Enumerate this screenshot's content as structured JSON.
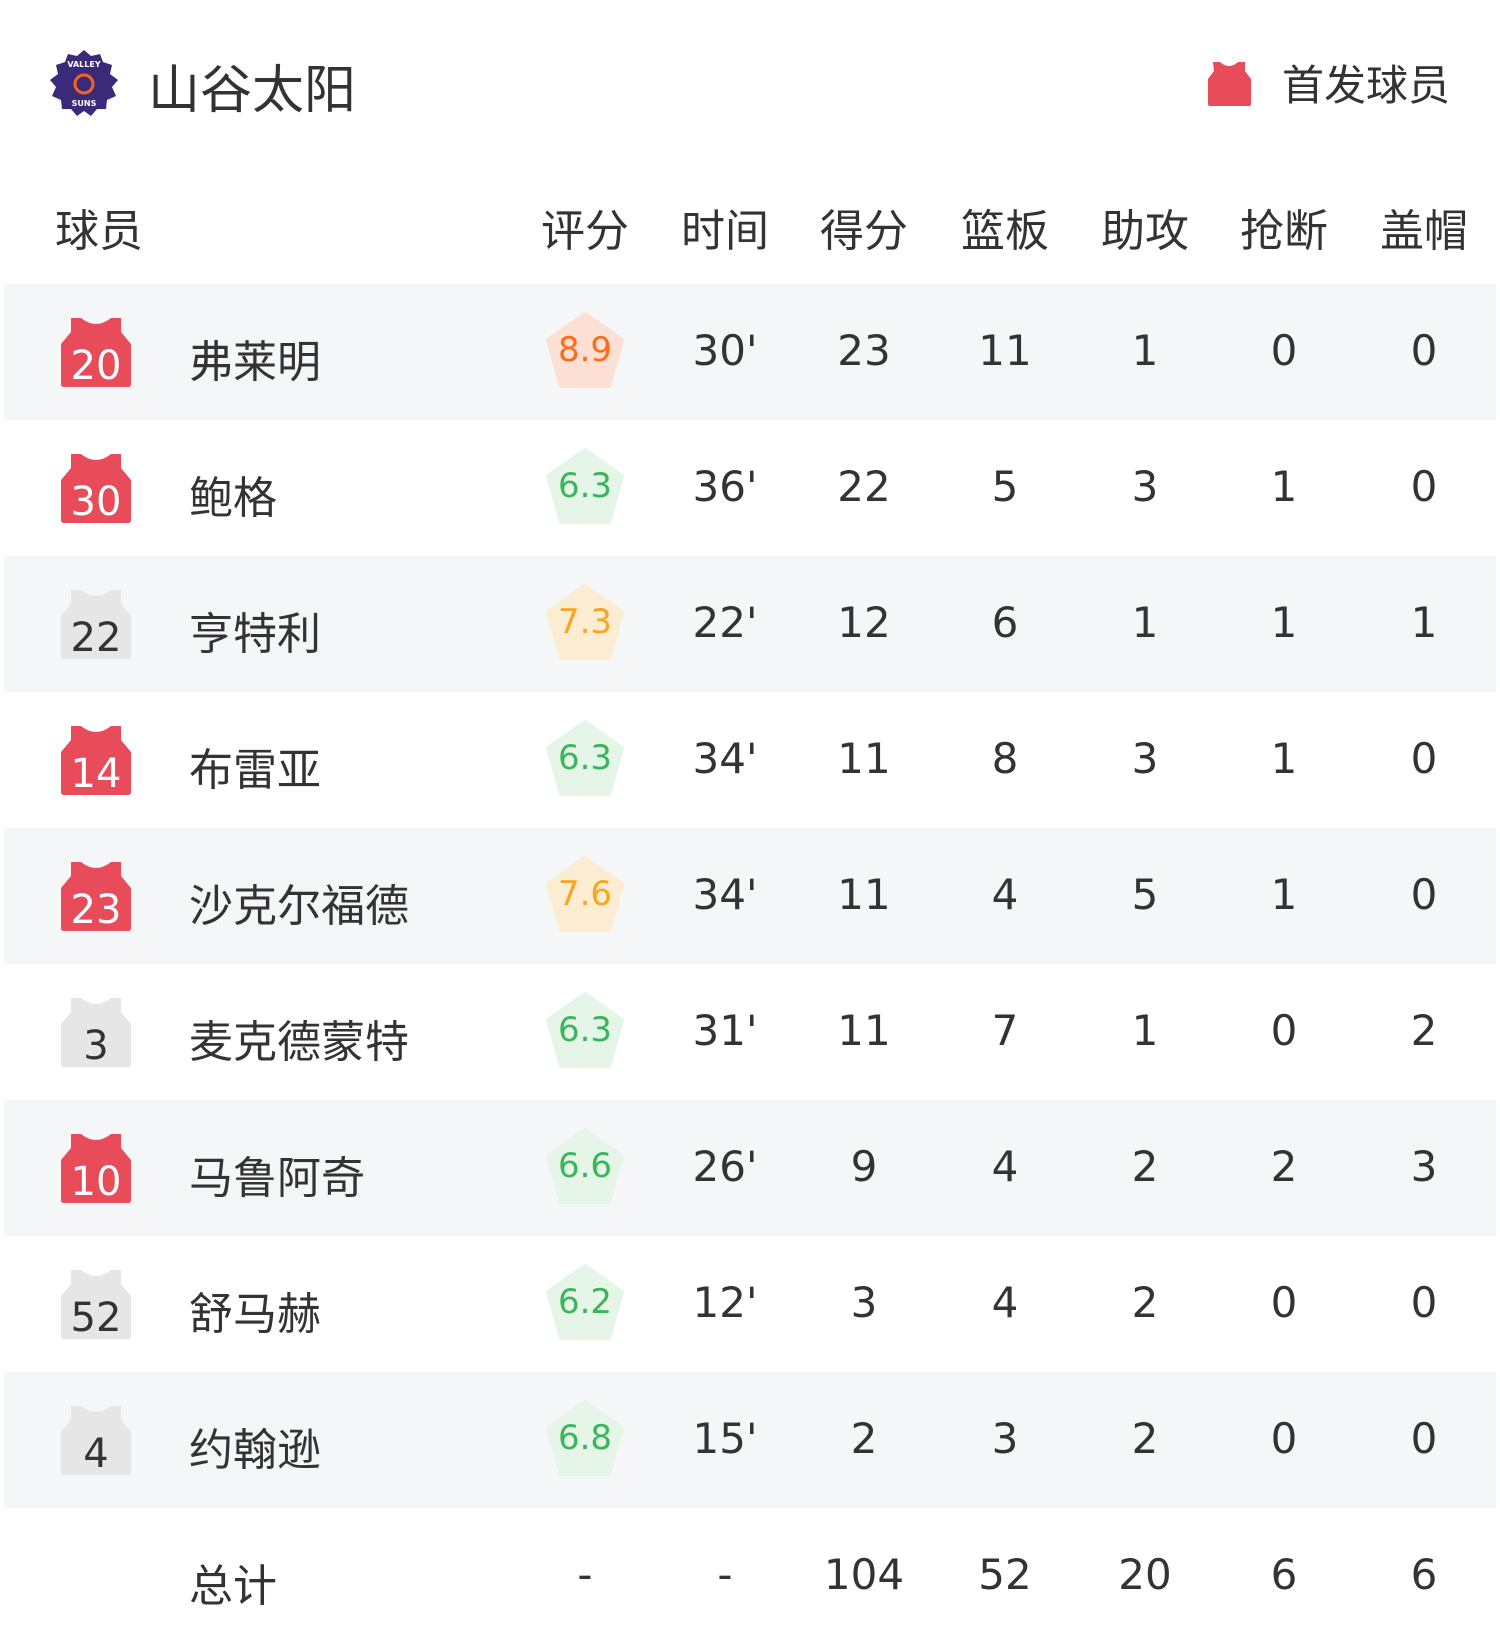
{
  "team": {
    "name": "山谷太阳",
    "logo_text": "VALLEY SUNS",
    "logo_colors": {
      "primary": "#3b2a7a",
      "accent": "#f26522"
    }
  },
  "legend": {
    "icon": "jersey-icon",
    "label": "首发球员",
    "color": "#e84c5a"
  },
  "columns": [
    "球员",
    "评分",
    "时间",
    "得分",
    "篮板",
    "助攻",
    "抢断",
    "盖帽"
  ],
  "colors": {
    "starter_jersey": "#e84c5a",
    "bench_jersey": "#e6e6e6",
    "rating_high": "#ff6a1a",
    "rating_mid": "#f5a623",
    "rating_low": "#3cb55a"
  },
  "players": [
    {
      "number": "20",
      "name": "弗莱明",
      "starter": true,
      "rating": "8.9",
      "tier": "high",
      "min": "30'",
      "pts": "23",
      "reb": "11",
      "ast": "1",
      "stl": "0",
      "blk": "0"
    },
    {
      "number": "30",
      "name": "鲍格",
      "starter": true,
      "rating": "6.3",
      "tier": "low",
      "min": "36'",
      "pts": "22",
      "reb": "5",
      "ast": "3",
      "stl": "1",
      "blk": "0"
    },
    {
      "number": "22",
      "name": "亨特利",
      "starter": false,
      "rating": "7.3",
      "tier": "mid",
      "min": "22'",
      "pts": "12",
      "reb": "6",
      "ast": "1",
      "stl": "1",
      "blk": "1"
    },
    {
      "number": "14",
      "name": "布雷亚",
      "starter": true,
      "rating": "6.3",
      "tier": "low",
      "min": "34'",
      "pts": "11",
      "reb": "8",
      "ast": "3",
      "stl": "1",
      "blk": "0"
    },
    {
      "number": "23",
      "name": "沙克尔福德",
      "starter": true,
      "rating": "7.6",
      "tier": "mid",
      "min": "34'",
      "pts": "11",
      "reb": "4",
      "ast": "5",
      "stl": "1",
      "blk": "0"
    },
    {
      "number": "3",
      "name": "麦克德蒙特",
      "starter": false,
      "rating": "6.3",
      "tier": "low",
      "min": "31'",
      "pts": "11",
      "reb": "7",
      "ast": "1",
      "stl": "0",
      "blk": "2"
    },
    {
      "number": "10",
      "name": "马鲁阿奇",
      "starter": true,
      "rating": "6.6",
      "tier": "low",
      "min": "26'",
      "pts": "9",
      "reb": "4",
      "ast": "2",
      "stl": "2",
      "blk": "3"
    },
    {
      "number": "52",
      "name": "舒马赫",
      "starter": false,
      "rating": "6.2",
      "tier": "low",
      "min": "12'",
      "pts": "3",
      "reb": "4",
      "ast": "2",
      "stl": "0",
      "blk": "0"
    },
    {
      "number": "4",
      "name": "约翰逊",
      "starter": false,
      "rating": "6.8",
      "tier": "low",
      "min": "15'",
      "pts": "2",
      "reb": "3",
      "ast": "2",
      "stl": "0",
      "blk": "0"
    }
  ],
  "totals": {
    "label": "总计",
    "rating": "-",
    "min": "-",
    "pts": "104",
    "reb": "52",
    "ast": "20",
    "stl": "6",
    "blk": "6"
  }
}
